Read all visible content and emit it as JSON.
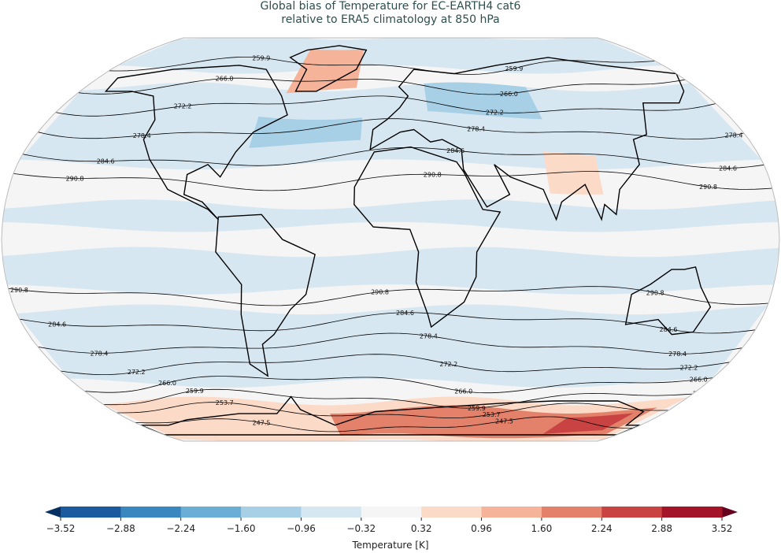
{
  "title": {
    "line1": "Global bias of Temperature for EC-EARTH4 cat6",
    "line2": "relative to ERA5 climatology at 850 hPa"
  },
  "map": {
    "projection": "Robinson",
    "contour_labels": [
      "259.9",
      "266.0",
      "272.2",
      "278.4",
      "284.6",
      "290.8",
      "253.7",
      "247.5"
    ],
    "contours": [
      {
        "label": "290.8",
        "lat_north": 24,
        "lat_south": -22
      },
      {
        "label": "284.6",
        "lat_north": 33,
        "lat_south": -33
      },
      {
        "label": "278.4",
        "lat_north": 44,
        "lat_south": -42
      },
      {
        "label": "272.2",
        "lat_north": 54,
        "lat_south": -50
      },
      {
        "label": "266.0",
        "lat_north": 63,
        "lat_south": -58
      },
      {
        "label": "259.9",
        "lat_north": 72,
        "lat_south": -65
      },
      {
        "label": "253.7",
        "lat_south": -71
      },
      {
        "label": "247.5",
        "lat_south": -78
      }
    ]
  },
  "colorbar": {
    "label": "Temperature [K]",
    "ticks": [
      "−3.52",
      "−2.88",
      "−2.24",
      "−1.60",
      "−0.96",
      "−0.32",
      "0.32",
      "0.96",
      "1.60",
      "2.24",
      "2.88",
      "3.52"
    ],
    "colors": [
      "#1c5a9e",
      "#3a87c0",
      "#6aaed5",
      "#a7cfe5",
      "#d7e7f1",
      "#f5f5f5",
      "#fcdac8",
      "#f5b49a",
      "#e3816a",
      "#c94343",
      "#a31428"
    ],
    "extend_low_color": "#053061",
    "extend_high_color": "#67001f"
  }
}
